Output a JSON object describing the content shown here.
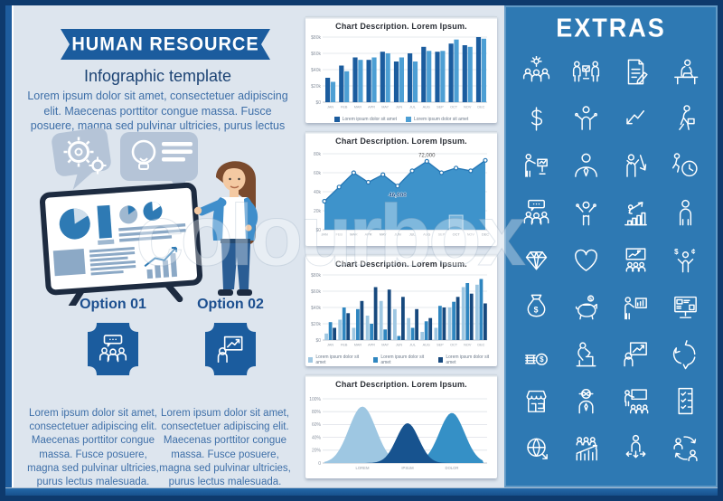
{
  "header": {
    "title": "HUMAN RESOURCE",
    "subtitle": "Infographic template",
    "paragraph": "Lorem ipsum dolor sit amet, consectetuer adipiscing elit. Maecenas porttitor congue massa. Fusce posuere, magna sed pulvinar ultricies, purus lectus malesuada."
  },
  "options": [
    {
      "label": "Option 01",
      "icon": "team-speech-bubble-icon",
      "paragraph": "Lorem ipsum dolor sit amet, consectetuer adipiscing elit. Maecenas porttitor congue massa. Fusce posuere, magna sed pulvinar ultricies, purus lectus malesuada."
    },
    {
      "label": "Option 02",
      "icon": "person-chart-arrow-icon",
      "paragraph": "Lorem ipsum dolor sit amet, consectetuer adipiscing elit. Maecenas porttitor congue massa. Fusce posuere, magna sed pulvinar ultricies, purus lectus malesuada."
    }
  ],
  "watermark": "colourbox",
  "extras": {
    "title": "EXTRAS",
    "icons": [
      "team-gears-icon",
      "meeting-presentation-icon",
      "document-edit-icon",
      "person-desk-laptop-icon",
      "dollar-sign-icon",
      "person-shrug-icon",
      "arrow-decline-icon",
      "person-walking-briefcase-icon",
      "person-presenting-monitor-icon",
      "businessman-bust-icon",
      "person-arrow-down-icon",
      "person-running-clock-icon",
      "team-speech-bubble-icon",
      "person-celebrating-icon",
      "person-climbing-chart-icon",
      "person-standing-icon",
      "diamond-icon",
      "heart-icon",
      "presentation-board-audience-icon",
      "person-juggling-currency-icon",
      "money-bag-icon",
      "piggy-bank-icon",
      "person-bar-chart-icon",
      "monitor-dashboard-icon",
      "coins-dollar-icon",
      "person-working-desk-icon",
      "person-chart-arrow-icon",
      "recycle-arrows-icon",
      "storefront-icon",
      "person-glasses-icon",
      "teacher-blackboard-audience-icon",
      "checklist-document-icon",
      "globe-arrow-icon",
      "team-growth-chart-icon",
      "person-direction-arrows-icon",
      "people-exchange-icon"
    ]
  },
  "colors": {
    "frame_navy": "#0e3a6d",
    "panel_blue": "#2e79b3",
    "accent_blue": "#1b5c9e",
    "bg_light": "#dde5ee",
    "text_navy": "#1c4374",
    "text_body": "#3e6fa8"
  },
  "chart_data": [
    {
      "type": "bar",
      "title": "Chart Description. Lorem Ipsum.",
      "categories": [
        "JAN",
        "FEB",
        "MAR",
        "APR",
        "MAY",
        "JUN",
        "JUL",
        "AUG",
        "SEP",
        "OCT",
        "NOV",
        "DEC"
      ],
      "series": [
        {
          "name": "Lorem ipsum dolor sit amet",
          "color": "#1b5c9e",
          "values": [
            30,
            45,
            55,
            52,
            62,
            50,
            60,
            68,
            62,
            72,
            70,
            80
          ]
        },
        {
          "name": "Lorem ipsum dolor sit amet",
          "color": "#4d9fd4",
          "values": [
            25,
            38,
            52,
            55,
            60,
            55,
            50,
            63,
            63,
            77,
            68,
            78
          ]
        }
      ],
      "yticks": [
        "$80k",
        "$60k",
        "$40k",
        "$20k",
        "$0"
      ],
      "ylim": [
        0,
        80
      ],
      "legend": true,
      "grid": true
    },
    {
      "type": "area",
      "title": "Chart Description. Lorem Ipsum.",
      "categories": [
        "JAN",
        "FEB",
        "MAR",
        "APR",
        "MAY",
        "JUN",
        "JUL",
        "AUG",
        "SEP",
        "OCT",
        "NOV",
        "DEC"
      ],
      "values": [
        30,
        45,
        60,
        50,
        58,
        46,
        62,
        72,
        60,
        65,
        62,
        73
      ],
      "color": "#3e93cb",
      "yticks": [
        "80k",
        "60k",
        "40k",
        "20k",
        "$0"
      ],
      "ylim": [
        0,
        80
      ],
      "annotations": [
        {
          "label": "72,000",
          "index": 7,
          "position": "above"
        },
        {
          "label": "46,000",
          "index": 5,
          "position": "below"
        }
      ],
      "highlight_index": 9,
      "grid": true
    },
    {
      "type": "bar",
      "title": "Chart Description. Lorem Ipsum.",
      "categories": [
        "JAN",
        "FEB",
        "MAR",
        "APR",
        "MAY",
        "JUN",
        "JUL",
        "AUG",
        "SEP",
        "OCT",
        "NOV",
        "DEC"
      ],
      "series": [
        {
          "name": "Lorem ipsum dolor sit amet",
          "color": "#9ec7e2",
          "values": [
            8,
            25,
            15,
            30,
            48,
            38,
            27,
            10,
            15,
            40,
            65,
            68
          ]
        },
        {
          "name": "Lorem ipsum dolor sit amet",
          "color": "#2f86c0",
          "values": [
            22,
            40,
            38,
            20,
            13,
            5,
            15,
            23,
            42,
            47,
            70,
            75
          ]
        },
        {
          "name": "Lorem ipsum dolor sit amet",
          "color": "#17497e",
          "values": [
            15,
            33,
            48,
            65,
            62,
            53,
            38,
            27,
            40,
            53,
            57,
            45
          ]
        }
      ],
      "yticks": [
        "$80k",
        "$60k",
        "$40k",
        "$20k",
        "$0"
      ],
      "ylim": [
        0,
        80
      ],
      "legend": true,
      "grid": true
    },
    {
      "type": "bell",
      "title": "Chart Description. Lorem Ipsum.",
      "categories": [
        "LOREM",
        "IPSUM",
        "DOLOR"
      ],
      "series": [
        {
          "name": "LOREM",
          "peak": 88,
          "color": "#9ec7e2"
        },
        {
          "name": "IPSUM",
          "peak": 62,
          "color": "#17538f"
        },
        {
          "name": "DOLOR",
          "peak": 78,
          "color": "#3590c6"
        }
      ],
      "yticks": [
        "100%",
        "80%",
        "60%",
        "40%",
        "20%",
        "0"
      ],
      "ylim": [
        0,
        100
      ],
      "grid": true
    }
  ]
}
